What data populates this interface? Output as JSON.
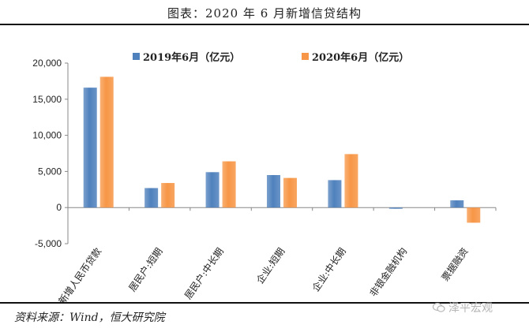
{
  "title": "图表：2020 年 6 月新增信贷结构",
  "source": "资料来源：Wind，恒大研究院",
  "watermark": "泽平宏观",
  "colors": {
    "series_2019": "#4f81bd",
    "series_2020": "#f79646"
  },
  "chart_data": {
    "type": "bar",
    "categories": [
      "新增人民币贷款",
      "居民户:短期",
      "居民户:中长期",
      "企业:短期",
      "企业:中长期",
      "非银金融机构",
      "票据融资"
    ],
    "series": [
      {
        "name": "2019年6月（亿元）",
        "values": [
          16600,
          2700,
          4900,
          4500,
          3800,
          -100,
          1000
        ]
      },
      {
        "name": "2020年6月（亿元）",
        "values": [
          18100,
          3400,
          6400,
          4100,
          7400,
          0,
          -2100
        ]
      }
    ],
    "yticks": [
      "20,000",
      "15,000",
      "10,000",
      "5,000",
      "0",
      "-5,000"
    ],
    "ylim": [
      -5000,
      20000
    ],
    "legend": "top-center"
  }
}
